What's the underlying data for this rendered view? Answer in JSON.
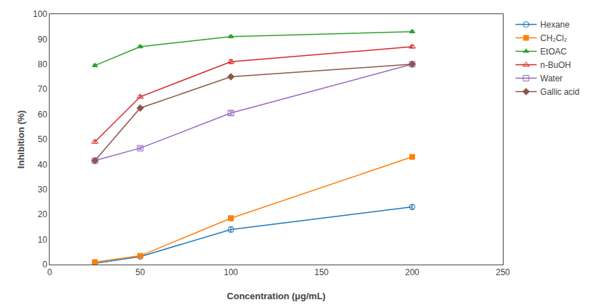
{
  "chart_data": {
    "type": "line",
    "x": [
      25,
      50,
      100,
      200
    ],
    "series": [
      {
        "name": "Hexane",
        "marker": "circle-open",
        "values": [
          0.5,
          3.2,
          14.0,
          23.0
        ],
        "yerr": [
          0.3,
          0.3,
          1.0,
          0.8
        ]
      },
      {
        "name": "CH₂Cl₂",
        "marker": "square",
        "values": [
          1.0,
          3.5,
          18.5,
          43.0
        ],
        "yerr": [
          0.2,
          0.3,
          1.0,
          0.8
        ]
      },
      {
        "name": "EtOAC",
        "marker": "triangle-up",
        "values": [
          79.5,
          87.0,
          91.0,
          93.0
        ],
        "yerr": [
          0.5,
          0.5,
          0.5,
          0.5
        ]
      },
      {
        "name": "n-BuOH",
        "marker": "triangle-up-open",
        "values": [
          49.0,
          67.0,
          81.0,
          87.0
        ],
        "yerr": [
          0.5,
          0.5,
          0.8,
          0.5
        ]
      },
      {
        "name": "Water",
        "marker": "square-open",
        "values": [
          41.5,
          46.5,
          60.5,
          80.0
        ],
        "yerr": [
          0.5,
          0.5,
          0.8,
          0.5
        ]
      },
      {
        "name": "Gallic acid",
        "marker": "diamond",
        "values": [
          41.5,
          62.5,
          75.0,
          80.0
        ],
        "yerr": [
          0.5,
          0.5,
          0.5,
          0.5
        ]
      }
    ],
    "xlabel": "Concentration (μg/mL)",
    "ylabel": "Inhibition (%)",
    "xlim": [
      0,
      250
    ],
    "ylim": [
      0,
      100
    ],
    "xticks": [
      0,
      50,
      100,
      150,
      200,
      250
    ],
    "yticks": [
      0,
      10,
      20,
      30,
      40,
      50,
      60,
      70,
      80,
      90,
      100
    ],
    "grid": false,
    "legend": "right"
  }
}
